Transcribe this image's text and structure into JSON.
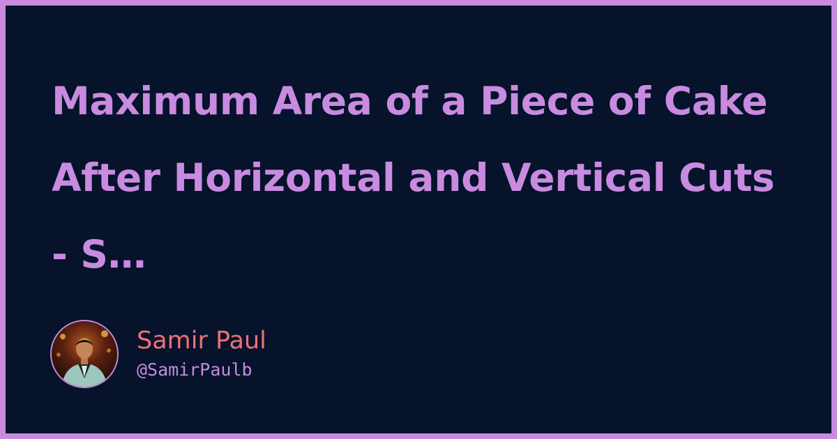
{
  "title": "Maximum Area of a Piece of Cake After Horizontal and Vertical Cuts - S…",
  "author": {
    "name": "Samir Paul",
    "handle": "@SamirPaulb",
    "avatar_icon": "person-photo-icon"
  },
  "colors": {
    "background": "#06132a",
    "border": "#c88be0",
    "title": "#c88be0",
    "author_name": "#ef6f78",
    "author_handle": "#c88be0"
  }
}
